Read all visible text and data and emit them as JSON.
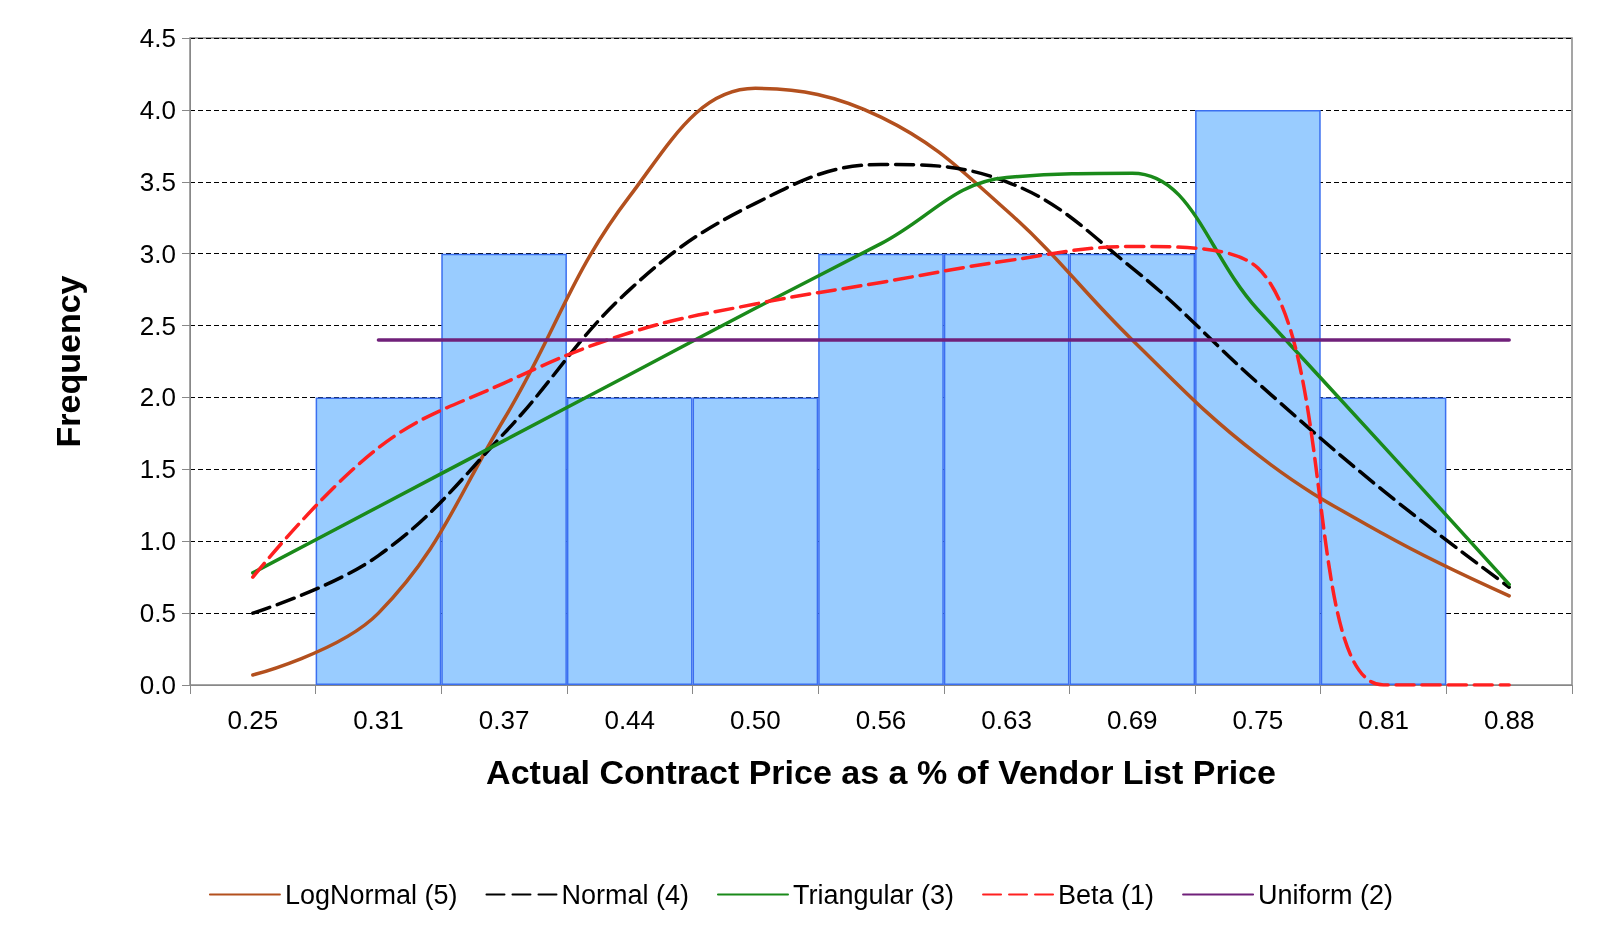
{
  "chart_data": {
    "type": "bar",
    "xlabel": "Actual Contract Price as a % of Vendor List Price",
    "ylabel": "Frequency",
    "categories": [
      "0.25",
      "0.31",
      "0.37",
      "0.44",
      "0.50",
      "0.56",
      "0.63",
      "0.69",
      "0.75",
      "0.81",
      "0.88"
    ],
    "series": [
      {
        "color": "#99ccff",
        "values": [
          0,
          2,
          3,
          2,
          2,
          3,
          3,
          3,
          4,
          2,
          0
        ]
      },
      {
        "type": "line",
        "name": "LogNormal (5)",
        "color": "#b3501e",
        "line_style": "solid",
        "values": [
          0.07,
          0.5,
          1.85,
          3.4,
          4.15,
          3.95,
          3.3,
          2.4,
          1.6,
          1.05,
          0.62
        ]
      },
      {
        "type": "line",
        "name": "Normal (4)",
        "color": "#000000",
        "line_style": "dashed",
        "values": [
          0.5,
          0.9,
          1.75,
          2.75,
          3.35,
          3.62,
          3.5,
          2.9,
          2.1,
          1.35,
          0.68
        ]
      },
      {
        "type": "line",
        "name": "Triangular (3)",
        "color": "#1a8a1a",
        "line_style": "solid",
        "values": [
          0.78,
          1.24,
          1.7,
          2.16,
          2.62,
          3.07,
          3.53,
          3.56,
          2.61,
          1.66,
          0.7
        ]
      },
      {
        "type": "line",
        "name": "Beta (1)",
        "color": "#ff2020",
        "line_style": "dashed",
        "values": [
          0.75,
          1.65,
          2.1,
          2.45,
          2.65,
          2.8,
          2.95,
          3.05,
          2.9,
          0,
          0
        ]
      },
      {
        "type": "line",
        "name": "Uniform (2)",
        "color": "#70207a",
        "line_style": "solid",
        "values": [
          null,
          2.4,
          2.4,
          2.4,
          2.4,
          2.4,
          2.4,
          2.4,
          2.4,
          2.4,
          2.4
        ]
      }
    ],
    "ylim": [
      0,
      4.5
    ],
    "yticks": [
      {
        "value": 0,
        "label": "0.0"
      },
      {
        "value": 0.5,
        "label": "0.5"
      },
      {
        "value": 1,
        "label": "1.0"
      },
      {
        "value": 1.5,
        "label": "1.5"
      },
      {
        "value": 2,
        "label": "2.0"
      },
      {
        "value": 2.5,
        "label": "2.5"
      },
      {
        "value": 3,
        "label": "3.0"
      },
      {
        "value": 3.5,
        "label": "3.5"
      },
      {
        "value": 4,
        "label": "4.0"
      },
      {
        "value": 4.5,
        "label": "4.5"
      }
    ],
    "grid": "y",
    "legend": "bottom",
    "marker": "none"
  }
}
